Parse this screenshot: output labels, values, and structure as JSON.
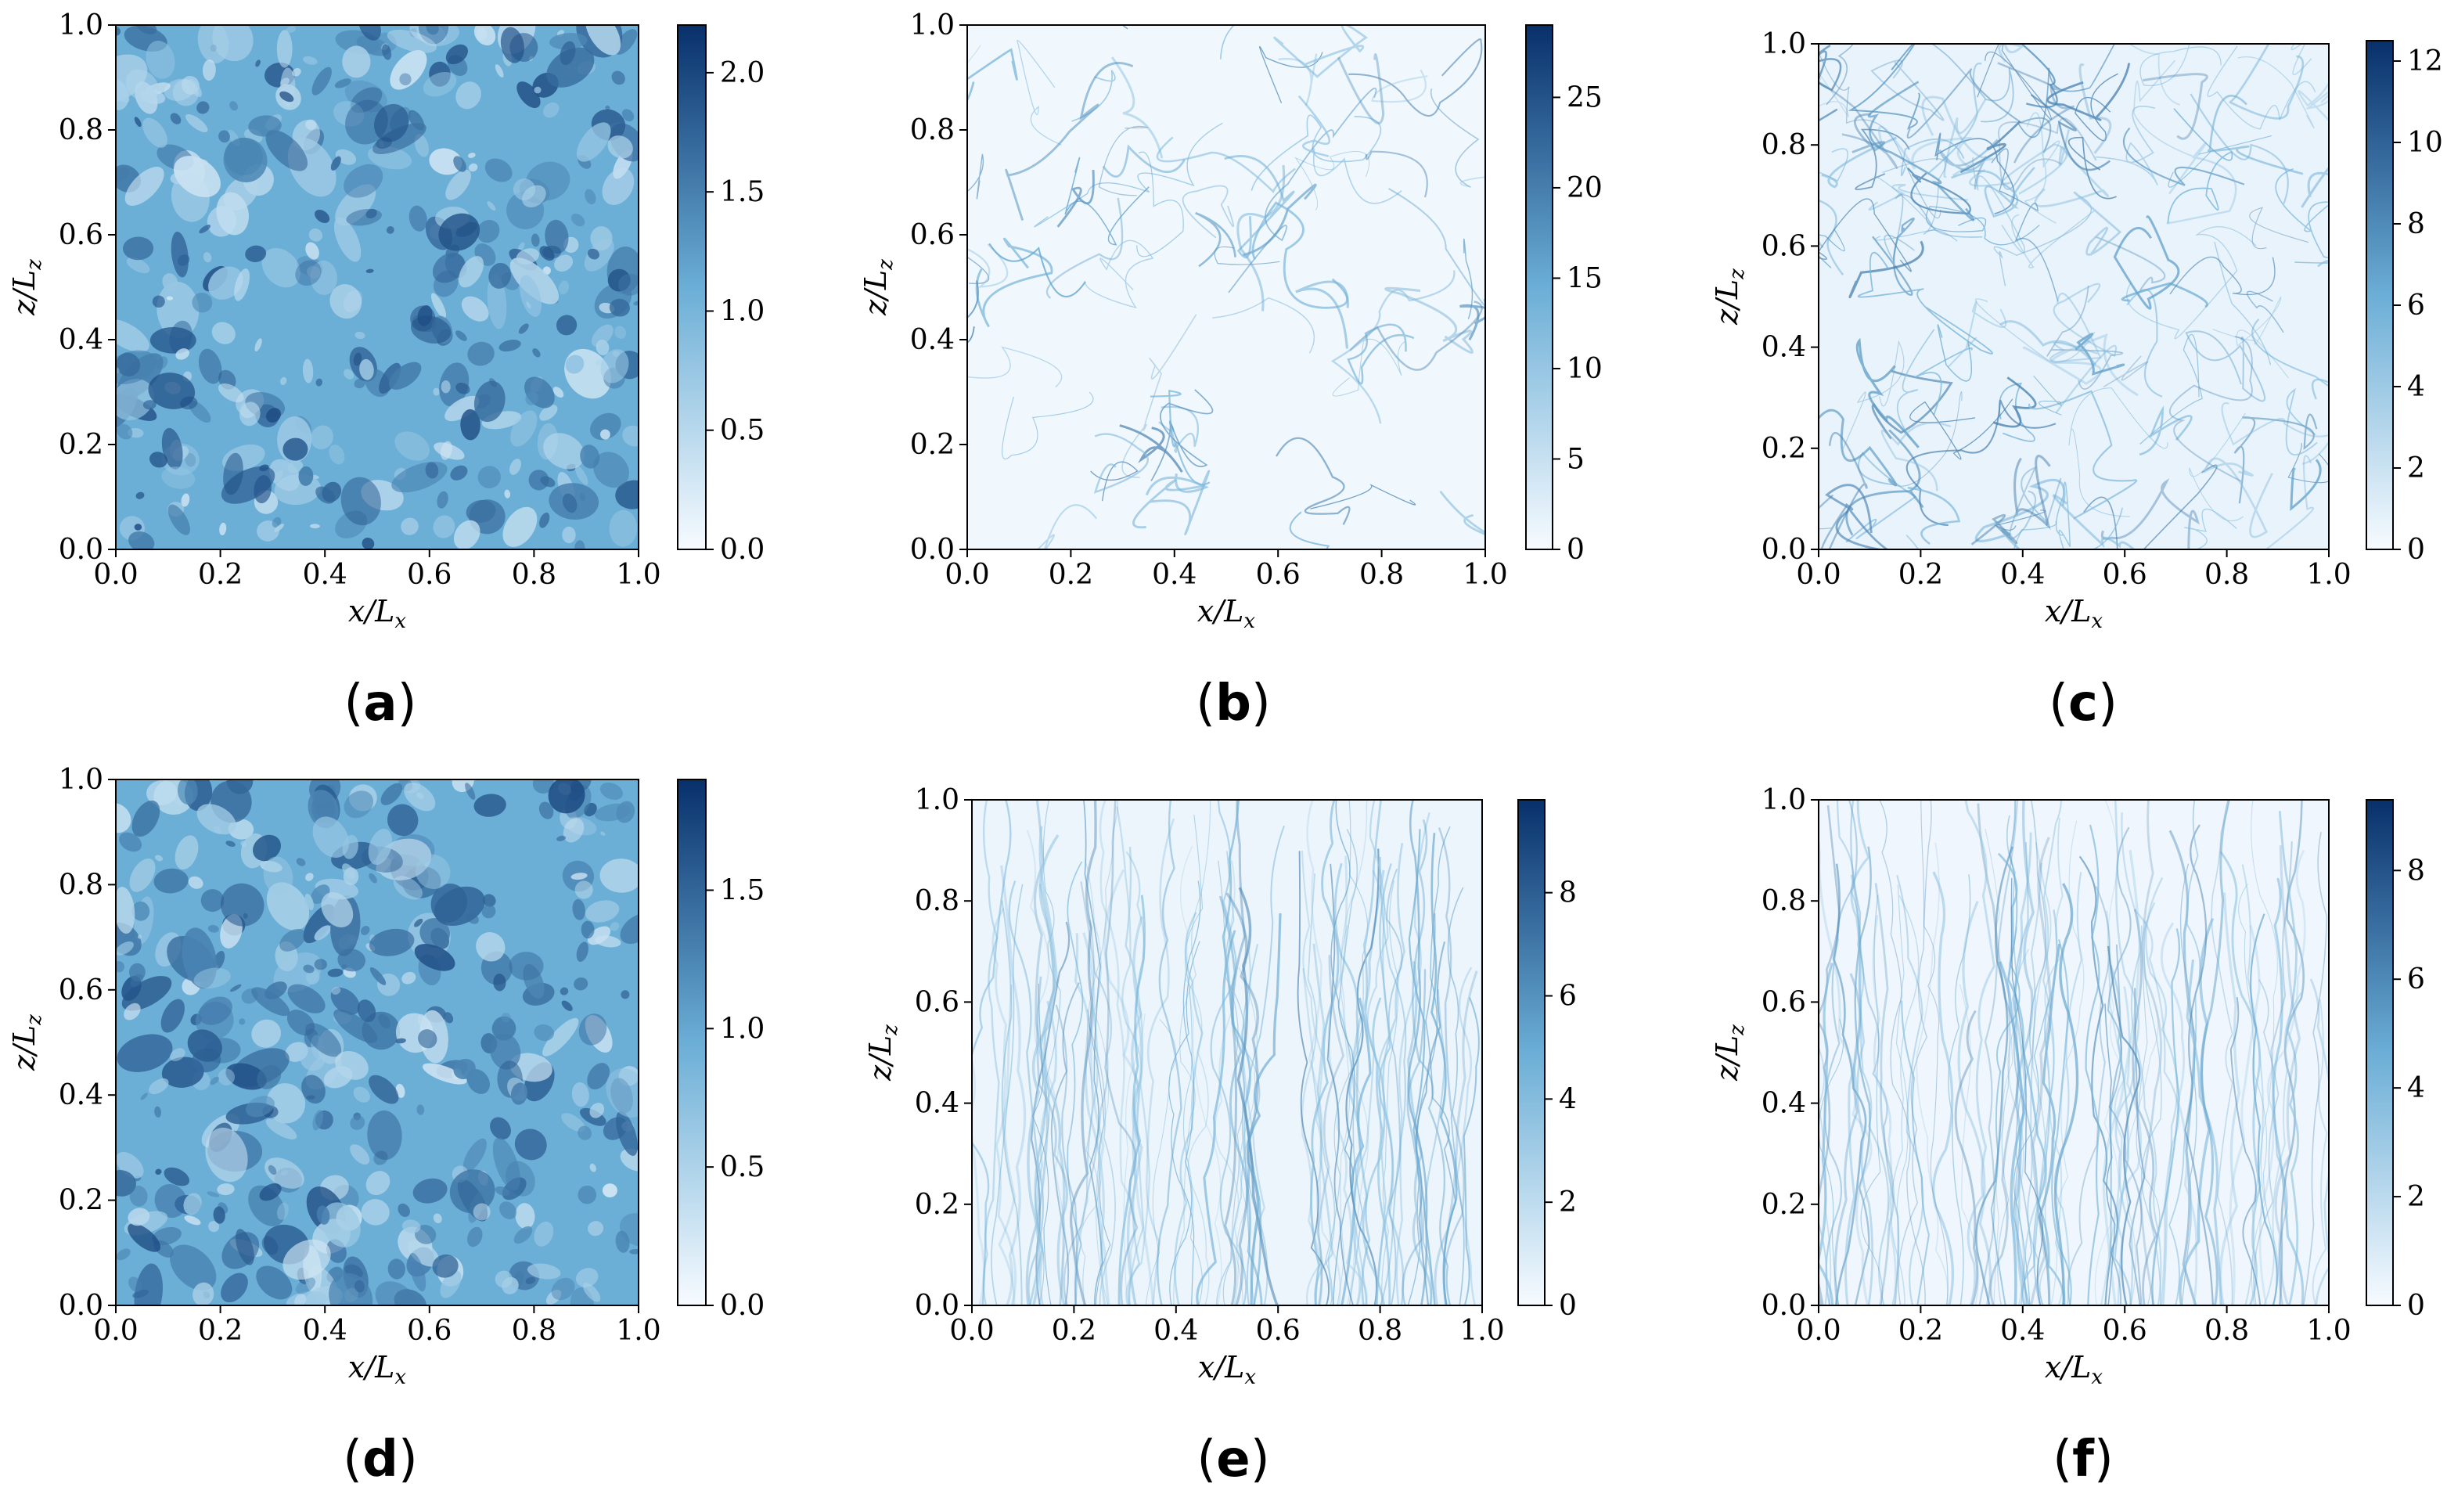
{
  "colormap": {
    "name": "Blues",
    "low": "#f7fbff",
    "mid": "#6baed6",
    "high": "#08306b"
  },
  "chart_data": [
    {
      "type": "heatmap",
      "panel": "(a)",
      "xlabel": "x/L_x",
      "ylabel": "z/L_z",
      "xlim": [
        0,
        1
      ],
      "ylim": [
        0,
        1
      ],
      "xticks": [
        "0.0",
        "0.2",
        "0.4",
        "0.6",
        "0.8",
        "1.0"
      ],
      "yticks": [
        "0.0",
        "0.2",
        "0.4",
        "0.6",
        "0.8",
        "1.0"
      ],
      "colorbar": {
        "min": 0,
        "max": 2.2,
        "ticks": [
          "0.0",
          "0.5",
          "1.0",
          "1.5",
          "2.0"
        ],
        "tick_values": [
          0,
          0.5,
          1.0,
          1.5,
          2.0
        ]
      },
      "field_character": "dense, high background with many small-scale structures and lighter blobs"
    },
    {
      "type": "heatmap",
      "panel": "(b)",
      "xlabel": "x/L_x",
      "ylabel": "z/L_z",
      "xlim": [
        0,
        1
      ],
      "ylim": [
        0,
        1
      ],
      "xticks": [
        "0.0",
        "0.2",
        "0.4",
        "0.6",
        "0.8",
        "1.0"
      ],
      "yticks": [
        "0.0",
        "0.2",
        "0.4",
        "0.6",
        "0.8",
        "1.0"
      ],
      "colorbar": {
        "min": 0,
        "max": 29,
        "ticks": [
          "0",
          "5",
          "10",
          "15",
          "20",
          "25"
        ],
        "tick_values": [
          0,
          5,
          10,
          15,
          20,
          25
        ]
      },
      "field_character": "mostly near-zero background with thin filamentary structures"
    },
    {
      "type": "heatmap",
      "panel": "(c)",
      "xlabel": "x/L_x",
      "ylabel": "z/L_z",
      "xlim": [
        0,
        1
      ],
      "ylim": [
        0,
        1
      ],
      "xticks": [
        "0.0",
        "0.2",
        "0.4",
        "0.6",
        "0.8",
        "1.0"
      ],
      "yticks": [
        "0.0",
        "0.2",
        "0.4",
        "0.6",
        "0.8",
        "1.0"
      ],
      "colorbar": {
        "min": 0,
        "max": 12.5,
        "ticks": [
          "0",
          "2",
          "4",
          "6",
          "8",
          "10",
          "12"
        ],
        "tick_values": [
          0,
          2,
          4,
          6,
          8,
          10,
          12
        ]
      },
      "field_character": "light background with network of filaments"
    },
    {
      "type": "heatmap",
      "panel": "(d)",
      "xlabel": "x/L_x",
      "ylabel": "z/L_z",
      "xlim": [
        0,
        1
      ],
      "ylim": [
        0,
        1
      ],
      "xticks": [
        "0.0",
        "0.2",
        "0.4",
        "0.6",
        "0.8",
        "1.0"
      ],
      "yticks": [
        "0.0",
        "0.2",
        "0.4",
        "0.6",
        "0.8",
        "1.0"
      ],
      "colorbar": {
        "min": 0,
        "max": 1.9,
        "ticks": [
          "0.0",
          "0.5",
          "1.0",
          "1.5"
        ],
        "tick_values": [
          0,
          0.5,
          1.0,
          1.5
        ]
      },
      "field_character": "dense, high background with many small-scale structures and lighter blobs"
    },
    {
      "type": "heatmap",
      "panel": "(e)",
      "xlabel": "x/L_x",
      "ylabel": "z/L_z",
      "xlim": [
        0,
        1
      ],
      "ylim": [
        0,
        1
      ],
      "xticks": [
        "0.0",
        "0.2",
        "0.4",
        "0.6",
        "0.8",
        "1.0"
      ],
      "yticks": [
        "0.0",
        "0.2",
        "0.4",
        "0.6",
        "0.8",
        "1.0"
      ],
      "colorbar": {
        "min": 0,
        "max": 9.8,
        "ticks": [
          "0",
          "2",
          "4",
          "6",
          "8"
        ],
        "tick_values": [
          0,
          2,
          4,
          6,
          8
        ]
      },
      "field_character": "light background with vertically elongated filaments"
    },
    {
      "type": "heatmap",
      "panel": "(f)",
      "xlabel": "x/L_x",
      "ylabel": "z/L_z",
      "xlim": [
        0,
        1
      ],
      "ylim": [
        0,
        1
      ],
      "xticks": [
        "0.0",
        "0.2",
        "0.4",
        "0.6",
        "0.8",
        "1.0"
      ],
      "yticks": [
        "0.0",
        "0.2",
        "0.4",
        "0.6",
        "0.8",
        "1.0"
      ],
      "colorbar": {
        "min": 0,
        "max": 9.3,
        "ticks": [
          "0",
          "2",
          "4",
          "6",
          "8"
        ],
        "tick_values": [
          0,
          2,
          4,
          6,
          8
        ]
      },
      "field_character": "light background with strongly vertical streaks"
    }
  ]
}
